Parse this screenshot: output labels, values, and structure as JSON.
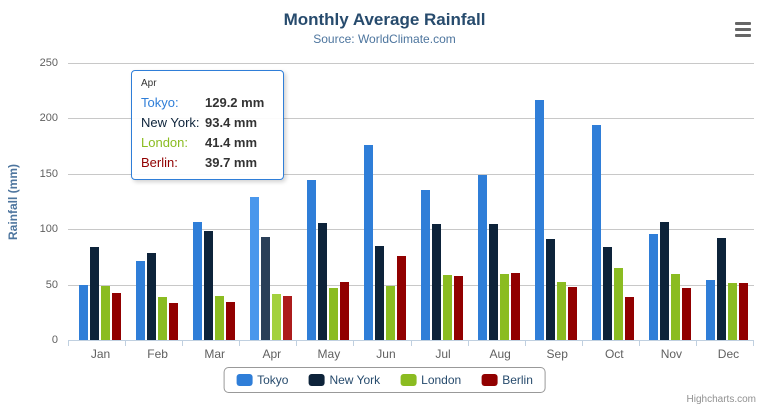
{
  "chart_data": {
    "type": "bar",
    "title": "Monthly Average Rainfall",
    "subtitle": "Source: WorldClimate.com",
    "ylabel": "Rainfall (mm)",
    "xlabel": "",
    "ylim": [
      0,
      250
    ],
    "y_tick_step": 50,
    "y_ticks": [
      0,
      50,
      100,
      150,
      200,
      250
    ],
    "grid": true,
    "legend_position": "bottom",
    "categories": [
      "Jan",
      "Feb",
      "Mar",
      "Apr",
      "May",
      "Jun",
      "Jul",
      "Aug",
      "Sep",
      "Oct",
      "Nov",
      "Dec"
    ],
    "series": [
      {
        "name": "Tokyo",
        "color": "#2f7ed8",
        "hover_color": "#4a97ec",
        "values": [
          49.9,
          71.5,
          106.4,
          129.2,
          144.0,
          176.0,
          135.6,
          148.5,
          216.4,
          194.1,
          95.6,
          54.4
        ]
      },
      {
        "name": "New York",
        "color": "#0d233a",
        "hover_color": "#2a3f58",
        "values": [
          83.6,
          78.8,
          98.5,
          93.4,
          106.0,
          84.5,
          105.0,
          104.3,
          91.2,
          83.5,
          106.6,
          92.3
        ]
      },
      {
        "name": "London",
        "color": "#8bbc21",
        "hover_color": "#a3d13e",
        "values": [
          48.9,
          38.8,
          39.3,
          41.4,
          47.0,
          48.3,
          59.0,
          59.6,
          52.4,
          65.2,
          59.3,
          51.2
        ]
      },
      {
        "name": "Berlin",
        "color": "#910000",
        "hover_color": "#ac1c1c",
        "values": [
          42.4,
          33.2,
          34.5,
          39.7,
          52.6,
          75.5,
          57.4,
          60.4,
          47.6,
          39.1,
          46.8,
          51.1
        ]
      }
    ],
    "hover_category": "Apr",
    "hover_category_index": 3
  },
  "tooltip": {
    "header": "Apr",
    "rows": [
      {
        "label": "Tokyo:",
        "value": "129.2 mm",
        "color": "#2f7ed8"
      },
      {
        "label": "New York:",
        "value": "93.4 mm",
        "color": "#0d233a"
      },
      {
        "label": "London:",
        "value": "41.4 mm",
        "color": "#8bbc21"
      },
      {
        "label": "Berlin:",
        "value": "39.7 mm",
        "color": "#910000"
      }
    ]
  },
  "credits": {
    "label": "Highcharts.com"
  },
  "icons": {
    "export_menu": "hamburger-menu"
  },
  "colors": {
    "title": "#274b6d",
    "subtitle": "#4d759e",
    "axis_label": "#606060",
    "axis_title": "#4d759e",
    "gridline": "#c8c8c8",
    "axis_line": "#c0d0e0",
    "legend_text": "#274b6d",
    "tooltip_border": "#2f7ed8",
    "credits_text": "#909090"
  }
}
